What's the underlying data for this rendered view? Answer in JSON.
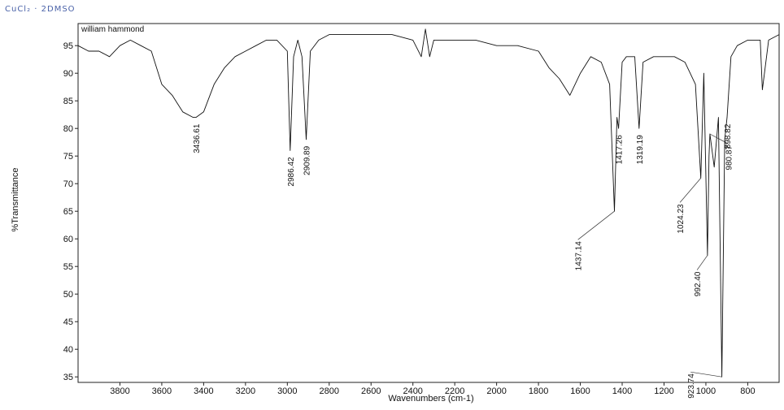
{
  "annotation_top": "CuCl₂ · 2DMSO",
  "chart_data": {
    "type": "line",
    "title": "william hammond",
    "xlabel": "Wavenumbers (cm-1)",
    "ylabel": "%Transmittance",
    "xlim": [
      4000,
      650
    ],
    "ylim": [
      34,
      99
    ],
    "x_reversed": true,
    "x_ticks": [
      3800,
      3600,
      3400,
      3200,
      3000,
      2800,
      2600,
      2400,
      2200,
      2000,
      1800,
      1600,
      1400,
      1200,
      1000,
      800
    ],
    "y_ticks": [
      35,
      40,
      45,
      50,
      55,
      60,
      65,
      70,
      75,
      80,
      85,
      90,
      95
    ],
    "grid": false,
    "series": [
      {
        "x": [
          4000,
          3950,
          3900,
          3850,
          3800,
          3750,
          3700,
          3650,
          3600,
          3550,
          3500,
          3450,
          3436.61,
          3400,
          3350,
          3300,
          3250,
          3200,
          3150,
          3100,
          3050,
          3000,
          2986.42,
          2970,
          2950,
          2930,
          2909.89,
          2890,
          2850,
          2800,
          2700,
          2600,
          2500,
          2400,
          2360,
          2340,
          2320,
          2300,
          2200,
          2100,
          2000,
          1900,
          1800,
          1750,
          1700,
          1650,
          1600,
          1550,
          1500,
          1460,
          1437.14,
          1425,
          1417.26,
          1400,
          1380,
          1340,
          1319.19,
          1300,
          1250,
          1150,
          1100,
          1050,
          1024.23,
          1010,
          992.4,
          985,
          980.87,
          960,
          940,
          923.74,
          910,
          898.82,
          880,
          850,
          800,
          760,
          740,
          730,
          700,
          650
        ],
        "y": [
          95,
          94,
          94,
          93,
          95,
          96,
          95,
          94,
          88,
          86,
          83,
          82,
          82,
          83,
          88,
          91,
          93,
          94,
          95,
          96,
          96,
          94,
          76,
          93,
          96,
          93,
          78,
          94,
          96,
          97,
          97,
          97,
          97,
          96,
          93,
          98,
          93,
          96,
          96,
          96,
          95,
          95,
          94,
          91,
          89,
          86,
          90,
          93,
          92,
          88,
          65,
          82,
          80,
          92,
          93,
          93,
          80,
          92,
          93,
          93,
          92,
          88,
          71,
          90,
          57,
          75,
          79,
          73,
          82,
          35,
          78,
          82,
          93,
          95,
          96,
          96,
          96,
          87,
          96,
          97
        ]
      }
    ],
    "peak_labels": [
      "3436.61",
      "2986.42",
      "2909.89",
      "1437.14",
      "1417.26",
      "1319.19",
      "1024.23",
      "992.40",
      "980.87",
      "923.74",
      "898.82"
    ]
  }
}
